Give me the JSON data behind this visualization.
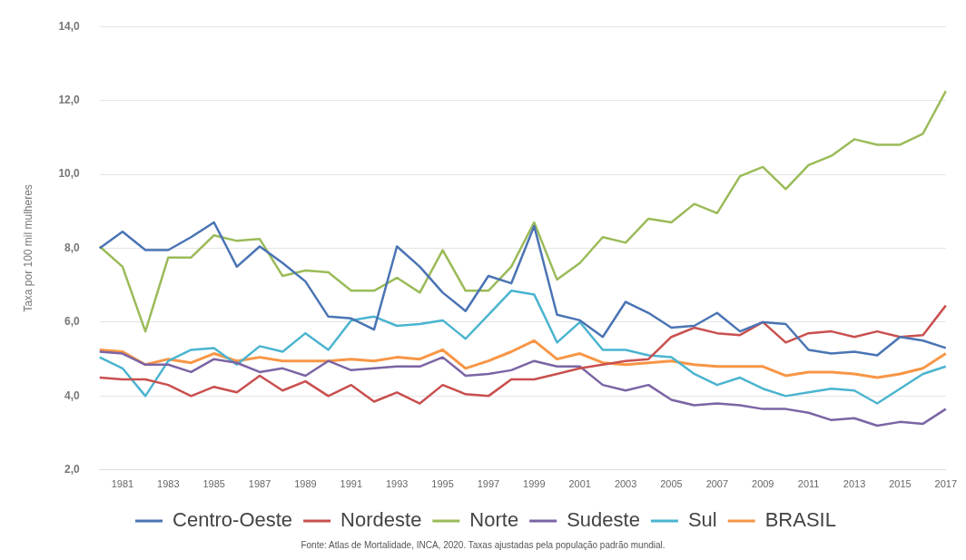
{
  "chart_data": {
    "type": "line",
    "ylabel": "Taxa por 100 mil mulheres",
    "categories": [
      null,
      "1981",
      null,
      "1983",
      null,
      "1985",
      null,
      "1987",
      null,
      "1989",
      null,
      "1991",
      null,
      "1993",
      null,
      "1995",
      null,
      "1997",
      null,
      "1999",
      null,
      "2001",
      null,
      "2003",
      null,
      "2005",
      null,
      "2007",
      null,
      "2009",
      null,
      "2011",
      null,
      "2013",
      null,
      "2015",
      null,
      "2017"
    ],
    "series": [
      {
        "name": "Centro-Oeste",
        "color": "#4a74b4",
        "values": [
          8.0,
          8.45,
          7.95,
          7.95,
          8.3,
          8.7,
          7.5,
          8.05,
          7.6,
          7.1,
          6.15,
          6.1,
          5.8,
          8.05,
          7.5,
          6.8,
          6.3,
          7.25,
          7.05,
          8.6,
          6.2,
          6.05,
          5.6,
          6.55,
          6.25,
          5.85,
          5.9,
          6.25,
          5.75,
          6.0,
          5.95,
          5.25,
          5.15,
          5.2,
          5.1,
          5.6,
          5.5,
          5.3
        ]
      },
      {
        "name": "Nordeste",
        "color": "#c9504f",
        "values": [
          4.5,
          4.45,
          4.45,
          4.3,
          4.0,
          4.25,
          4.1,
          4.55,
          4.15,
          4.4,
          4.0,
          4.3,
          3.85,
          4.1,
          3.8,
          4.3,
          4.05,
          4.0,
          4.45,
          4.45,
          4.6,
          4.75,
          4.85,
          4.95,
          5.0,
          5.6,
          5.85,
          5.7,
          5.65,
          6.0,
          5.45,
          5.7,
          5.75,
          5.6,
          5.75,
          5.6,
          5.65,
          6.45
        ]
      },
      {
        "name": "Norte",
        "color": "#9bbb59",
        "values": [
          8.05,
          7.5,
          5.75,
          7.75,
          7.75,
          8.35,
          8.2,
          8.25,
          7.25,
          7.4,
          7.35,
          6.85,
          6.85,
          7.2,
          6.8,
          7.95,
          6.85,
          6.85,
          7.5,
          8.7,
          7.15,
          7.6,
          8.3,
          8.15,
          8.8,
          8.7,
          9.2,
          8.95,
          9.95,
          10.2,
          9.6,
          10.25,
          10.5,
          10.95,
          10.8,
          10.8,
          11.1,
          12.25
        ]
      },
      {
        "name": "Sudeste",
        "color": "#7b64a4",
        "values": [
          5.2,
          5.15,
          4.85,
          4.85,
          4.65,
          5.0,
          4.9,
          4.65,
          4.75,
          4.55,
          4.95,
          4.7,
          4.75,
          4.8,
          4.8,
          5.05,
          4.55,
          4.6,
          4.7,
          4.95,
          4.8,
          4.8,
          4.3,
          4.15,
          4.3,
          3.9,
          3.75,
          3.8,
          3.75,
          3.65,
          3.65,
          3.55,
          3.35,
          3.4,
          3.2,
          3.3,
          3.25,
          3.65
        ]
      },
      {
        "name": "Sul",
        "color": "#4bb4cf",
        "values": [
          5.05,
          4.75,
          4.0,
          4.95,
          5.25,
          5.3,
          4.85,
          5.35,
          5.2,
          5.7,
          5.25,
          6.05,
          6.15,
          5.9,
          5.95,
          6.05,
          5.55,
          6.2,
          6.85,
          6.75,
          5.45,
          6.0,
          5.25,
          5.25,
          5.1,
          5.05,
          4.6,
          4.3,
          4.5,
          4.2,
          4.0,
          4.1,
          4.2,
          4.15,
          3.8,
          4.2,
          4.6,
          4.8
        ]
      },
      {
        "name": "BRASIL",
        "color": "#f79646",
        "values": [
          5.25,
          5.2,
          4.85,
          5.0,
          4.9,
          5.15,
          4.95,
          5.05,
          4.95,
          4.95,
          4.95,
          5.0,
          4.95,
          5.05,
          5.0,
          5.25,
          4.75,
          4.95,
          5.2,
          5.5,
          5.0,
          5.15,
          4.9,
          4.85,
          4.9,
          4.95,
          4.85,
          4.8,
          4.8,
          4.8,
          4.55,
          4.65,
          4.65,
          4.6,
          4.5,
          4.6,
          4.75,
          5.15
        ]
      }
    ],
    "ylim": [
      2,
      14
    ],
    "yticks": [
      {
        "value": 2,
        "label": "2,0"
      },
      {
        "value": 4,
        "label": "4,0"
      },
      {
        "value": 6,
        "label": "6,0"
      },
      {
        "value": 8,
        "label": "8,0"
      },
      {
        "value": 10,
        "label": "10,0"
      },
      {
        "value": 12,
        "label": "12,0"
      },
      {
        "value": 14,
        "label": "14,0"
      }
    ],
    "grid": "y",
    "legend": "bottom",
    "marker": "none",
    "line_style": "solid",
    "annotations": [
      "Fonte: Atlas de Mortalidade, INCA, 2020. Taxas ajustadas pela população padrão mundial."
    ]
  }
}
